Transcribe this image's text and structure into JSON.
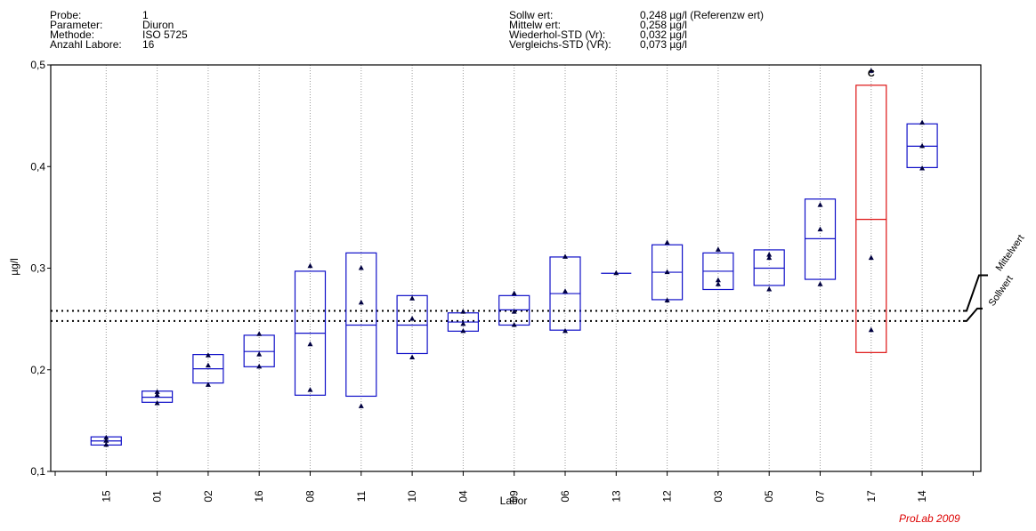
{
  "info": {
    "left": [
      {
        "label": "Probe:",
        "value": "1"
      },
      {
        "label": "Parameter:",
        "value": "Diuron"
      },
      {
        "label": "Methode:",
        "value": "ISO 5725"
      },
      {
        "label": "Anzahl Labore:",
        "value": "16"
      }
    ],
    "right": [
      {
        "label": "Sollw ert:",
        "value": "0,248 µg/l (Referenzw ert)"
      },
      {
        "label": "Mittelw ert:",
        "value": "0,258 µg/l"
      },
      {
        "label": "Wiederhol-STD (Vr):",
        "value": "0,032 µg/l"
      },
      {
        "label": "Vergleichs-STD (VR):",
        "value": "0,073 µg/l"
      }
    ]
  },
  "watermark": "ProLab 2009",
  "chart_data": {
    "type": "box",
    "xlabel": "Labor",
    "ylabel": "µg/l",
    "ylim": [
      0.1,
      0.5
    ],
    "yticks": [
      0.1,
      0.2,
      0.3,
      0.4,
      0.5
    ],
    "ytick_labels": [
      "0,1",
      "0,2",
      "0,3",
      "0,4",
      "0,5"
    ],
    "reference_lines": [
      {
        "label": "Mittelwert",
        "value": 0.258
      },
      {
        "label": "Sollwert",
        "value": 0.248
      }
    ],
    "labs": [
      {
        "id": "15",
        "min": 0.126,
        "mean": 0.13,
        "max": 0.134,
        "points": [
          0.126,
          0.13,
          0.133
        ],
        "color": "#1010c8"
      },
      {
        "id": "01",
        "min": 0.168,
        "mean": 0.173,
        "max": 0.179,
        "points": [
          0.167,
          0.175,
          0.178
        ],
        "color": "#1010c8"
      },
      {
        "id": "02",
        "min": 0.187,
        "mean": 0.201,
        "max": 0.215,
        "points": [
          0.185,
          0.204,
          0.214
        ],
        "color": "#1010c8"
      },
      {
        "id": "16",
        "min": 0.203,
        "mean": 0.218,
        "max": 0.234,
        "points": [
          0.203,
          0.215,
          0.235
        ],
        "color": "#1010c8"
      },
      {
        "id": "08",
        "min": 0.175,
        "mean": 0.236,
        "max": 0.297,
        "points": [
          0.18,
          0.225,
          0.302
        ],
        "color": "#1010c8"
      },
      {
        "id": "11",
        "min": 0.174,
        "mean": 0.244,
        "max": 0.315,
        "points": [
          0.164,
          0.266,
          0.3
        ],
        "color": "#1010c8"
      },
      {
        "id": "10",
        "min": 0.216,
        "mean": 0.244,
        "max": 0.273,
        "points": [
          0.212,
          0.25,
          0.27
        ],
        "color": "#1010c8"
      },
      {
        "id": "04",
        "min": 0.238,
        "mean": 0.247,
        "max": 0.256,
        "points": [
          0.238,
          0.245,
          0.257
        ],
        "color": "#1010c8"
      },
      {
        "id": "09",
        "min": 0.244,
        "mean": 0.259,
        "max": 0.273,
        "points": [
          0.244,
          0.257,
          0.275
        ],
        "color": "#1010c8"
      },
      {
        "id": "06",
        "min": 0.239,
        "mean": 0.275,
        "max": 0.311,
        "points": [
          0.238,
          0.277,
          0.311
        ],
        "color": "#1010c8"
      },
      {
        "id": "13",
        "min": 0.295,
        "mean": 0.295,
        "max": 0.295,
        "points": [
          0.295
        ],
        "color": "#1010c8"
      },
      {
        "id": "12",
        "min": 0.269,
        "mean": 0.296,
        "max": 0.323,
        "points": [
          0.268,
          0.296,
          0.325
        ],
        "color": "#1010c8"
      },
      {
        "id": "03",
        "min": 0.279,
        "mean": 0.297,
        "max": 0.315,
        "points": [
          0.284,
          0.288,
          0.318
        ],
        "color": "#1010c8"
      },
      {
        "id": "05",
        "min": 0.283,
        "mean": 0.3,
        "max": 0.318,
        "points": [
          0.279,
          0.31,
          0.313
        ],
        "color": "#1010c8"
      },
      {
        "id": "07",
        "min": 0.289,
        "mean": 0.329,
        "max": 0.368,
        "points": [
          0.284,
          0.338,
          0.362
        ],
        "color": "#1010c8"
      },
      {
        "id": "17",
        "min": 0.217,
        "mean": 0.348,
        "max": 0.48,
        "points": [
          0.239,
          0.31,
          0.494
        ],
        "color": "#dd1111",
        "flag": "C"
      },
      {
        "id": "14",
        "min": 0.399,
        "mean": 0.42,
        "max": 0.442,
        "points": [
          0.398,
          0.42,
          0.443
        ],
        "color": "#1010c8"
      }
    ]
  }
}
